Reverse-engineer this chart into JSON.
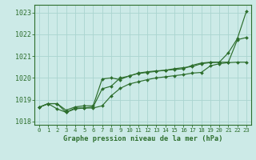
{
  "title": "Graphe pression niveau de la mer (hPa)",
  "background_color": "#cceae7",
  "grid_color": "#aad4d0",
  "line_color": "#2d6e2d",
  "xlim": [
    -0.5,
    23.5
  ],
  "ylim": [
    1017.85,
    1023.35
  ],
  "yticks": [
    1018,
    1019,
    1020,
    1021,
    1022,
    1023
  ],
  "xticks": [
    0,
    1,
    2,
    3,
    4,
    5,
    6,
    7,
    8,
    9,
    10,
    11,
    12,
    13,
    14,
    15,
    16,
    17,
    18,
    19,
    20,
    21,
    22,
    23
  ],
  "xtick_labels": [
    "0",
    "1",
    "2",
    "3",
    "4",
    "5",
    "6",
    "7",
    "8",
    "9",
    "10",
    "11",
    "12",
    "13",
    "14",
    "15",
    "16",
    "17",
    "18",
    "19",
    "20",
    "21",
    "22",
    "23"
  ],
  "line1_x": [
    0,
    1,
    2,
    3,
    4,
    5,
    6,
    7,
    8,
    9,
    10,
    11,
    12,
    13,
    14,
    15,
    16,
    17,
    18,
    19,
    20,
    21,
    22,
    23
  ],
  "line1_y": [
    1018.65,
    1018.82,
    1018.82,
    1018.52,
    1018.67,
    1018.72,
    1018.72,
    1019.95,
    1020.0,
    1019.92,
    1020.1,
    1020.2,
    1020.25,
    1020.3,
    1020.35,
    1020.42,
    1020.47,
    1020.52,
    1020.65,
    1020.7,
    1020.72,
    1021.15,
    1021.8,
    1023.05
  ],
  "line2_x": [
    0,
    1,
    2,
    3,
    4,
    5,
    6,
    7,
    8,
    9,
    10,
    11,
    12,
    13,
    14,
    15,
    16,
    17,
    18,
    19,
    20,
    21,
    22,
    23
  ],
  "line2_y": [
    1018.65,
    1018.82,
    1018.58,
    1018.42,
    1018.62,
    1018.62,
    1018.67,
    1019.5,
    1019.62,
    1020.0,
    1020.08,
    1020.22,
    1020.28,
    1020.32,
    1020.35,
    1020.38,
    1020.42,
    1020.58,
    1020.68,
    1020.72,
    1020.72,
    1020.72,
    1021.75,
    1021.85
  ],
  "line3_x": [
    0,
    1,
    2,
    3,
    4,
    5,
    6,
    7,
    8,
    9,
    10,
    11,
    12,
    13,
    14,
    15,
    16,
    17,
    18,
    19,
    20,
    21,
    22,
    23
  ],
  "line3_y": [
    1018.65,
    1018.82,
    1018.82,
    1018.42,
    1018.58,
    1018.62,
    1018.62,
    1018.72,
    1019.18,
    1019.52,
    1019.72,
    1019.82,
    1019.92,
    1020.0,
    1020.05,
    1020.1,
    1020.15,
    1020.22,
    1020.25,
    1020.55,
    1020.65,
    1020.7,
    1020.72,
    1020.72
  ]
}
